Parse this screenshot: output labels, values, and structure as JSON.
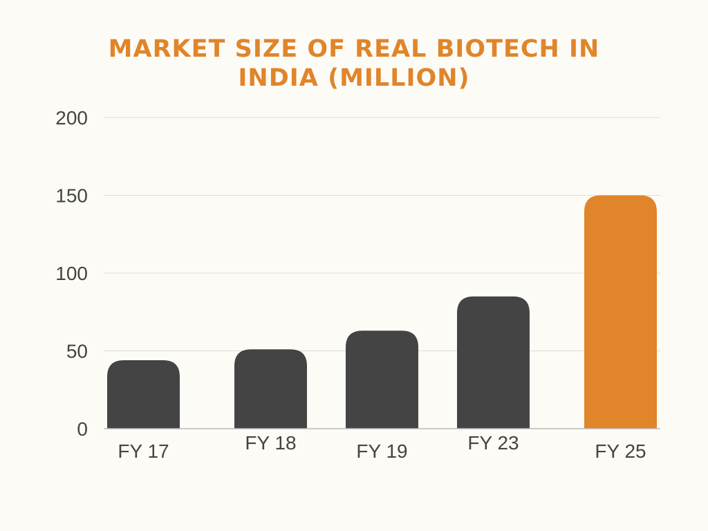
{
  "chart_data": {
    "type": "bar",
    "title_lines": [
      "MARKET SIZE OF REAL BIOTECH IN",
      "INDIA (MILLION)"
    ],
    "categories": [
      "FY 17",
      "FY 18",
      "FY 19",
      "FY 23",
      "FY 25"
    ],
    "values": [
      44,
      51,
      63,
      85,
      150
    ],
    "ylim": [
      0,
      200
    ],
    "yticks": [
      0,
      50,
      100,
      150,
      200
    ],
    "grid": true,
    "colors": {
      "default_bar": "#444444",
      "highlight_bar": "#E0852A",
      "title": "#E0852A",
      "gridline": "#DDDDDD",
      "axis": "#BBBBBB"
    },
    "highlight_index": 4
  }
}
